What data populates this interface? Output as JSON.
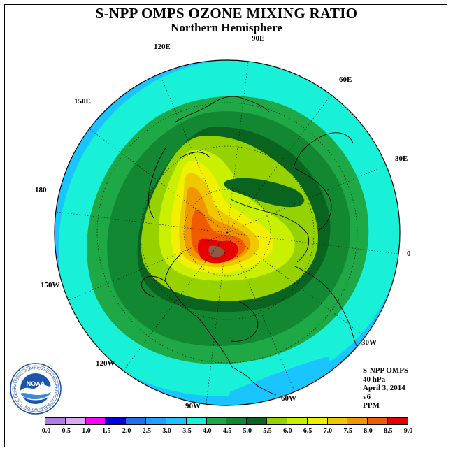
{
  "title": "S-NPP OMPS OZONE MIXING RATIO",
  "subtitle": "Northern Hemisphere",
  "longitude_labels": [
    "90E",
    "60E",
    "30E",
    "0",
    "30W",
    "60W",
    "90W",
    "120W",
    "150W",
    "180",
    "150E",
    "120E"
  ],
  "info": {
    "instrument": "S-NPP OMPS",
    "level": "40 hPa",
    "date": "April 3, 2014",
    "version": "v6",
    "units": "PPM"
  },
  "logo": {
    "name": "noaa-logo",
    "text": "NOAA",
    "ring_text": "NATIONAL OCEANIC AND ATMOSPHERIC ADMINISTRATION · U.S. DEPARTMENT OF COMMERCE"
  },
  "colorbar": {
    "ticks": [
      "0.0",
      "0.5",
      "1.0",
      "1.5",
      "2.0",
      "2.5",
      "3.0",
      "3.5",
      "4.0",
      "4.5",
      "5.0",
      "5.5",
      "6.0",
      "6.5",
      "7.0",
      "7.5",
      "8.0",
      "8.5",
      "9.0"
    ],
    "colors": [
      "#b07de8",
      "#dca8f5",
      "#ff00ff",
      "#0000e0",
      "#1e6ef0",
      "#1ea0ff",
      "#19c4ff",
      "#19f0d8",
      "#1ea846",
      "#128832",
      "#0a6420",
      "#96d200",
      "#c8f000",
      "#f0f000",
      "#f0c800",
      "#f09600",
      "#f05a00",
      "#e60000",
      "#8c5a46"
    ]
  }
}
